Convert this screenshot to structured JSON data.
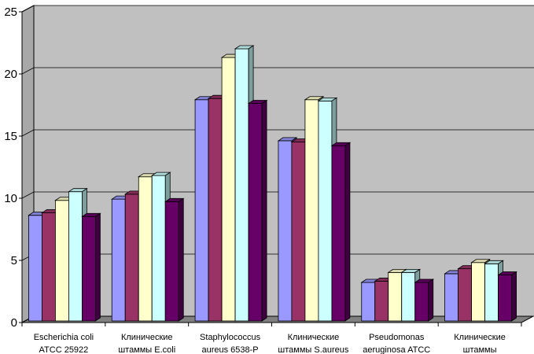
{
  "chart_data": {
    "type": "bar",
    "subtype": "3d-clustered-column",
    "title": "",
    "xlabel": "",
    "ylabel": "",
    "ylim": [
      0,
      25
    ],
    "yticks": [
      0,
      5,
      10,
      15,
      20,
      25
    ],
    "grid": true,
    "legend": "none",
    "categories": [
      [
        "Escherichia coli",
        "ATCC 25922"
      ],
      [
        "Клинические",
        "штаммы E.coli"
      ],
      [
        "Staphylococcus",
        "aureus 6538-P"
      ],
      [
        "Клинические",
        "штаммы S.aureus"
      ],
      [
        "Pseudomonas",
        "aeruginosa ATCC"
      ],
      [
        "Клинические",
        "штаммы"
      ]
    ],
    "series": [
      {
        "color": "#9999ff",
        "values": [
          8.5,
          9.8,
          17.8,
          14.5,
          3.1,
          3.8
        ]
      },
      {
        "color": "#993366",
        "values": [
          8.7,
          10.2,
          17.9,
          14.4,
          3.2,
          4.2
        ]
      },
      {
        "color": "#ffffcc",
        "values": [
          9.7,
          11.6,
          21.2,
          17.8,
          3.9,
          4.7
        ]
      },
      {
        "color": "#ccffff",
        "values": [
          10.4,
          11.7,
          21.9,
          17.7,
          3.9,
          4.6
        ]
      },
      {
        "color": "#660066",
        "values": [
          8.4,
          9.6,
          17.5,
          14.1,
          3.1,
          3.7
        ]
      }
    ]
  }
}
